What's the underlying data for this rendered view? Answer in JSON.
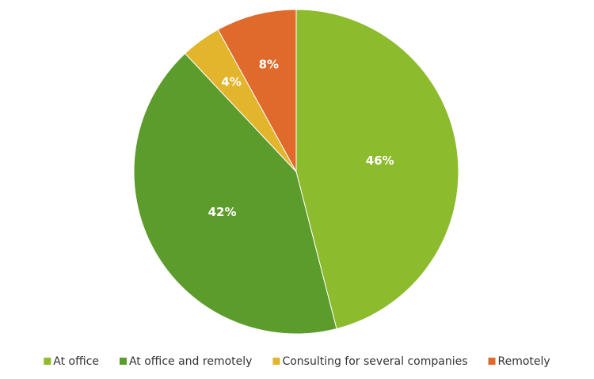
{
  "chart_data": {
    "type": "pie",
    "categories": [
      "At office",
      "At office and remotely",
      "Consulting for several companies",
      "Remotely"
    ],
    "values": [
      46,
      42,
      4,
      8
    ],
    "value_labels": [
      "46%",
      "42%",
      "4%",
      "8%"
    ],
    "colors": [
      "#8dbb2e",
      "#5c9c2c",
      "#e3b52c",
      "#e06a2c"
    ],
    "legend": "bottom"
  }
}
